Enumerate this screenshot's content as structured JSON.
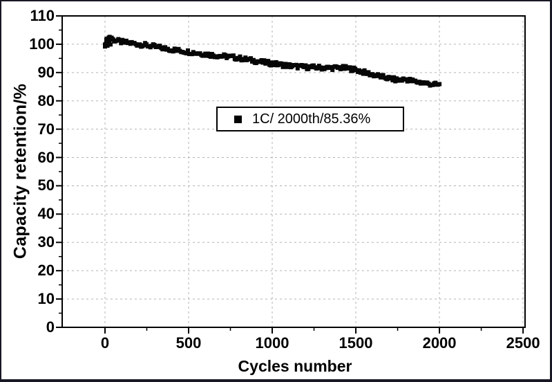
{
  "chart_data": {
    "type": "scatter",
    "title": "",
    "xlabel": "Cycles number",
    "ylabel": "Capacity retention/%",
    "xlim": [
      -256,
      2512
    ],
    "ylim": [
      0,
      110
    ],
    "x_major_ticks": [
      0,
      500,
      1000,
      1500,
      2000,
      2500
    ],
    "x_minor_ticks": [
      250,
      750,
      1250,
      1750,
      2250
    ],
    "y_major_ticks": [
      0,
      10,
      20,
      30,
      40,
      50,
      60,
      70,
      80,
      90,
      100,
      110
    ],
    "y_minor_ticks": [
      5,
      15,
      25,
      35,
      45,
      55,
      65,
      75,
      85,
      95,
      105
    ],
    "grid": {
      "show_major": true,
      "style": "dashed",
      "color": "#b3b3b3",
      "legend_position": "upper-middle"
    },
    "legend": {
      "label": "1C/ 2000th/85.36%",
      "marker": "filled-black-square-icon"
    },
    "series": [
      {
        "name": "1C/ 2000th/85.36%",
        "marker": "square",
        "color": "#070707",
        "marker_size_px": 6,
        "scatter_halfband_pct": 0.75,
        "point_step_cycles": 8,
        "trend_points": [
          [
            0,
            100.6
          ],
          [
            30,
            101.8
          ],
          [
            60,
            101.3
          ],
          [
            100,
            100.6
          ],
          [
            150,
            100.2
          ],
          [
            200,
            99.8
          ],
          [
            250,
            99.5
          ],
          [
            300,
            99.1
          ],
          [
            350,
            98.7
          ],
          [
            400,
            98.3
          ],
          [
            450,
            97.9
          ],
          [
            500,
            97.5
          ],
          [
            550,
            97.0
          ],
          [
            600,
            96.5
          ],
          [
            650,
            96.0
          ],
          [
            700,
            95.6
          ],
          [
            750,
            95.3
          ],
          [
            800,
            94.9
          ],
          [
            850,
            94.5
          ],
          [
            900,
            94.1
          ],
          [
            950,
            93.7
          ],
          [
            1000,
            93.4
          ],
          [
            1050,
            93.0
          ],
          [
            1100,
            92.6
          ],
          [
            1150,
            92.2
          ],
          [
            1200,
            91.9
          ],
          [
            1250,
            91.7
          ],
          [
            1300,
            91.5
          ],
          [
            1350,
            91.4
          ],
          [
            1400,
            91.5
          ],
          [
            1450,
            91.4
          ],
          [
            1500,
            91.0
          ],
          [
            1550,
            90.2
          ],
          [
            1600,
            89.5
          ],
          [
            1650,
            88.8
          ],
          [
            1700,
            88.1
          ],
          [
            1750,
            87.4
          ],
          [
            1800,
            87.6
          ],
          [
            1850,
            86.7
          ],
          [
            1900,
            86.2
          ],
          [
            1950,
            85.7
          ],
          [
            2000,
            85.36
          ]
        ],
        "start_cluster_points": [
          [
            0,
            99.2
          ],
          [
            5,
            100.1
          ],
          [
            8,
            99.8
          ],
          [
            10,
            101.9
          ],
          [
            12,
            100.6
          ],
          [
            15,
            99.5
          ],
          [
            18,
            101.5
          ],
          [
            22,
            102.3
          ],
          [
            25,
            100.9
          ],
          [
            28,
            102.6
          ],
          [
            33,
            99.9
          ],
          [
            35,
            102.0
          ],
          [
            40,
            102.3
          ],
          [
            45,
            101.6
          ],
          [
            55,
            101.0
          ]
        ]
      }
    ]
  },
  "layout_colors": {
    "background": "#ffffff",
    "axis": "#000000",
    "text": "#000000",
    "frame_border": "#181824"
  }
}
